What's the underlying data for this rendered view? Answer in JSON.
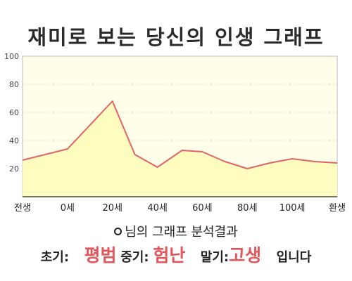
{
  "title": "재미로 보는 당신의 인생 그래프",
  "chart_data": {
    "type": "area",
    "categories": [
      "전생",
      "0세",
      "20세",
      "40세",
      "60세",
      "80세",
      "100세",
      "환생"
    ],
    "x": [
      -20,
      0,
      20,
      40,
      60,
      80,
      100,
      120
    ],
    "series": [
      {
        "x": [
          -20,
          0,
          20,
          30,
          40,
          51,
          60,
          70,
          80,
          90,
          100,
          110,
          120
        ],
        "values": [
          26,
          34,
          68,
          30,
          21,
          33,
          32,
          25,
          20,
          24,
          27,
          25,
          24
        ]
      }
    ],
    "xlim": [
      -20,
      120
    ],
    "ylim": [
      0,
      100
    ],
    "yticks": [
      20,
      40,
      60,
      80,
      100
    ],
    "grid": true,
    "colors": {
      "line": "#e0636a",
      "fill": "#fffcc0",
      "background": "#fffee8",
      "grid": "#e6e2c0"
    }
  },
  "summary": {
    "text": "님의 그래프 분석결과"
  },
  "verdict": {
    "early_label": "초기:",
    "early_value": "평범",
    "middle_label": "중기:",
    "middle_value": "험난",
    "late_label": "말기:",
    "late_value": "고생",
    "ending": "입니다"
  }
}
